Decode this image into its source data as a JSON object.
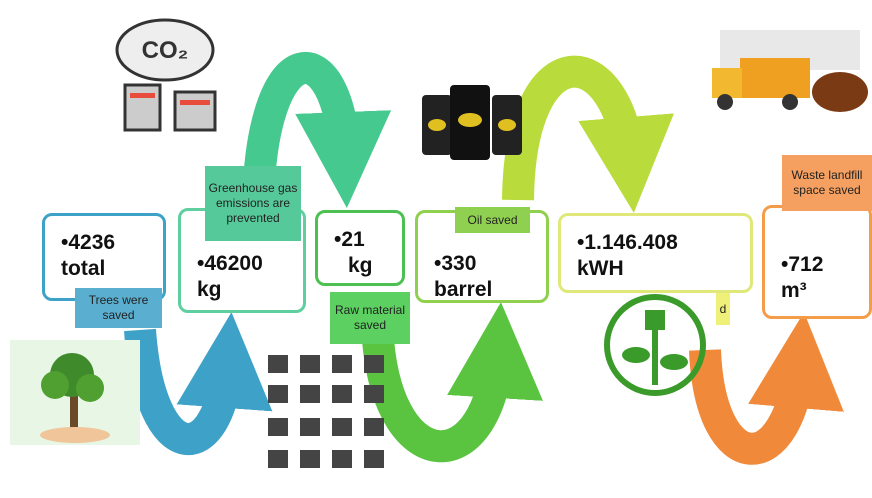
{
  "items": [
    {
      "value": "•4236",
      "unit": "total",
      "label": "Trees were saved"
    },
    {
      "value": "•46200",
      "unit": "kg",
      "label": "Greenhouse gas emissions are prevented"
    },
    {
      "value": "•21",
      "unit": "kg",
      "label": "Raw material saved"
    },
    {
      "value": "•330",
      "unit": "barrel",
      "label": "Oil saved"
    },
    {
      "value": "•1.146.408",
      "unit": "kWH",
      "label": "d"
    },
    {
      "value": "•712",
      "unit": "m³",
      "label": "Waste landfill space saved"
    }
  ]
}
